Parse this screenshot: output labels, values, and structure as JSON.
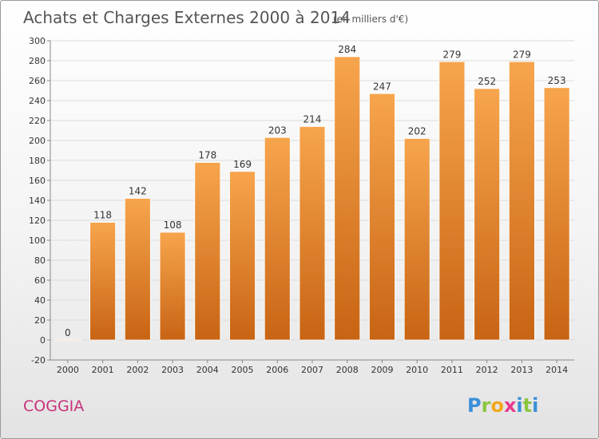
{
  "header": {
    "title": "Achats et Charges Externes 2000 à 2014",
    "unit": "(en milliers d'€)"
  },
  "footer": {
    "place": "COGGIA",
    "brand": {
      "letters": [
        "P",
        "r",
        "o",
        "x",
        "i",
        "t",
        "i"
      ],
      "colors": [
        "#3a8fd8",
        "#8bc53f",
        "#f2a71b",
        "#e63a8e",
        "#3a8fd8",
        "#8bc53f",
        "#3a8fd8"
      ]
    }
  },
  "colors": {
    "bar_top": "#f7a54d",
    "bar_bottom": "#c86414",
    "title": "#555555",
    "place": "#c8327a",
    "grid": "#dcdcdc",
    "axis_text": "#333333"
  },
  "chart_data": {
    "type": "bar",
    "title": "Achats et Charges Externes 2000 à 2014",
    "subtitle": "(en milliers d'€)",
    "xlabel": "",
    "ylabel": "",
    "categories": [
      "2000",
      "2001",
      "2002",
      "2003",
      "2004",
      "2005",
      "2006",
      "2007",
      "2008",
      "2009",
      "2010",
      "2011",
      "2012",
      "2013",
      "2014"
    ],
    "values": [
      0,
      118,
      142,
      108,
      178,
      169,
      203,
      214,
      284,
      247,
      202,
      279,
      252,
      279,
      253
    ],
    "ylim": [
      -20,
      300
    ],
    "yticks": [
      -20,
      0,
      20,
      40,
      60,
      80,
      100,
      120,
      140,
      160,
      180,
      200,
      220,
      240,
      260,
      280,
      300
    ],
    "grid": true,
    "legend": "none"
  }
}
